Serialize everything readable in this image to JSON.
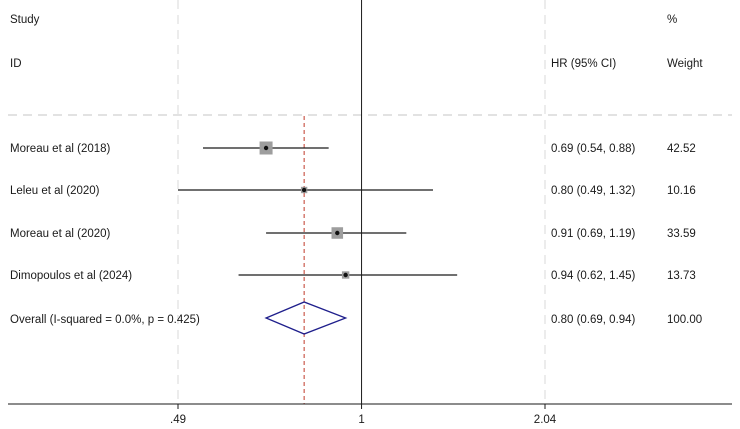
{
  "chart_data": {
    "type": "forest",
    "header": {
      "col1_line1": "Study",
      "col1_line2": "ID",
      "col2": "HR (95% CI)",
      "col3_line1": "%",
      "col3_line2": "Weight"
    },
    "studies": [
      {
        "label": "Moreau et al (2018)",
        "hr": 0.69,
        "lo": 0.54,
        "hi": 0.88,
        "hr_text": "0.69 (0.54, 0.88)",
        "weight": 42.52,
        "weight_text": "42.52"
      },
      {
        "label": "Leleu et al (2020)",
        "hr": 0.8,
        "lo": 0.49,
        "hi": 1.32,
        "hr_text": "0.80 (0.49, 1.32)",
        "weight": 10.16,
        "weight_text": "10.16"
      },
      {
        "label": "Moreau et al (2020)",
        "hr": 0.91,
        "lo": 0.69,
        "hi": 1.19,
        "hr_text": "0.91 (0.69, 1.19)",
        "weight": 33.59,
        "weight_text": "33.59"
      },
      {
        "label": "Dimopoulos et al (2024)",
        "hr": 0.94,
        "lo": 0.62,
        "hi": 1.45,
        "hr_text": "0.94 (0.62, 1.45)",
        "weight": 13.73,
        "weight_text": "13.73"
      }
    ],
    "overall": {
      "label": "Overall  (I-squared = 0.0%, p = 0.425)",
      "hr": 0.8,
      "lo": 0.69,
      "hi": 0.94,
      "hr_text": "0.80 (0.69, 0.94)",
      "weight_text": "100.00"
    },
    "x_axis": {
      "scale": "log",
      "ticks": [
        0.49,
        1,
        2.04
      ],
      "tick_labels": [
        ".49",
        "1",
        "2.04"
      ],
      "range": [
        0.4,
        2.9
      ]
    },
    "null_line": 1,
    "colors": {
      "diamond": "#1f1f8c",
      "overall_line": "#c0392b",
      "box": "#9e9e9e",
      "line": "#1a1a1a",
      "grid": "#d9d9d9"
    }
  }
}
